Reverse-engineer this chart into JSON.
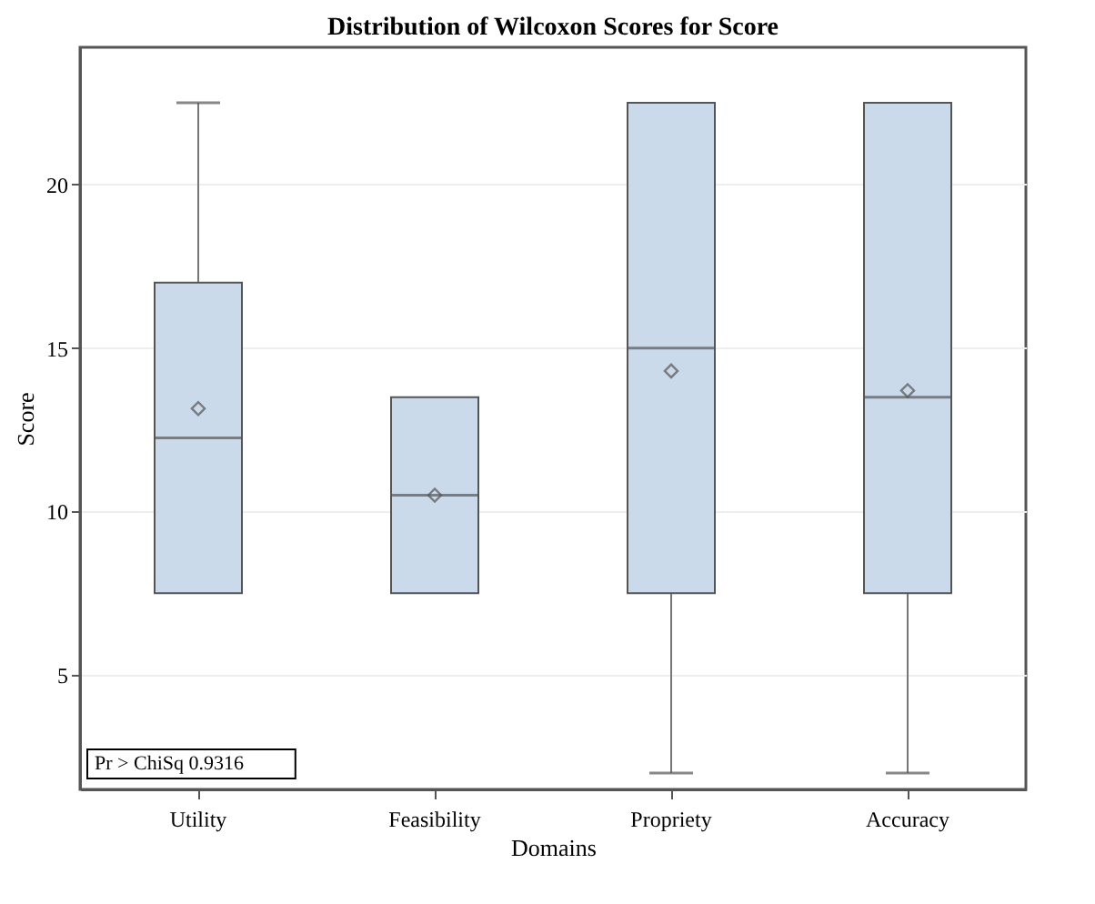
{
  "chart_data": {
    "type": "box",
    "title": "Distribution of Wilcoxon Scores for Score",
    "xlabel": "Domains",
    "ylabel": "Score",
    "categories": [
      "Utility",
      "Feasibility",
      "Propriety",
      "Accuracy"
    ],
    "boxes": [
      {
        "low": 7.5,
        "q1": 7.5,
        "median": 12.25,
        "q3": 17,
        "high": 22.5,
        "mean": 13.15
      },
      {
        "low": 7.5,
        "q1": 7.5,
        "median": 10.5,
        "q3": 13.5,
        "high": 13.5,
        "mean": 10.5
      },
      {
        "low": 2,
        "q1": 7.5,
        "median": 15,
        "q3": 22.5,
        "high": 22.5,
        "mean": 14.3
      },
      {
        "low": 2,
        "q1": 7.5,
        "median": 13.5,
        "q3": 22.5,
        "high": 22.5,
        "mean": 13.7
      }
    ],
    "color": "#cbdaeb",
    "ylim": [
      1.5,
      24.2
    ],
    "yticks": [
      5,
      10,
      15,
      20
    ],
    "grid": "y",
    "marker": "diamond",
    "annotations": [
      "Pr > ChiSq   0.9316"
    ]
  }
}
